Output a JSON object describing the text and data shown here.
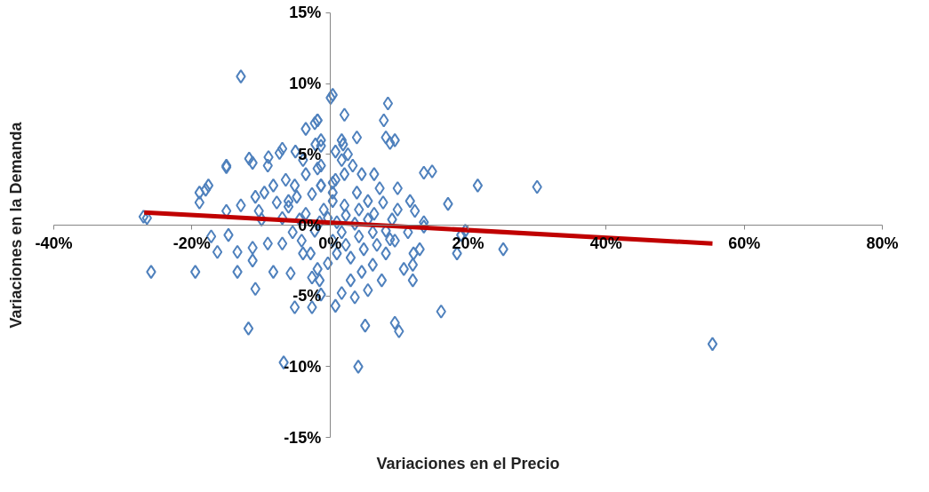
{
  "chart_data": {
    "type": "scatter",
    "xlabel": "Variaciones en el Precio",
    "ylabel": "Variaciones en la Demanda",
    "xlim": [
      -40,
      80
    ],
    "ylim": [
      -15,
      15
    ],
    "xticks": [
      {
        "value": -40,
        "label": "-40%"
      },
      {
        "value": -20,
        "label": "-20%"
      },
      {
        "value": 0,
        "label": "0%"
      },
      {
        "value": 20,
        "label": "20%"
      },
      {
        "value": 40,
        "label": "40%"
      },
      {
        "value": 60,
        "label": "60%"
      },
      {
        "value": 80,
        "label": "80%"
      }
    ],
    "yticks": [
      {
        "value": -15,
        "label": "-15%"
      },
      {
        "value": -10,
        "label": "-10%"
      },
      {
        "value": -5,
        "label": "-5%"
      },
      {
        "value": 0,
        "label": "0%"
      },
      {
        "value": 5,
        "label": "5%"
      },
      {
        "value": 10,
        "label": "10%"
      },
      {
        "value": 15,
        "label": "15%"
      }
    ],
    "grid": false,
    "series": [
      {
        "color": "#4f81bd",
        "marker": "diamond",
        "x": [
          -12.9,
          0.1,
          8.4,
          2.1,
          7.8,
          -2.2,
          -3.5,
          8.1,
          3.9,
          8.7,
          1.9,
          -2.1,
          -5.0,
          -8.9,
          -7.3,
          -11.7,
          -15.0,
          13.6,
          14.8,
          21.4,
          30.0,
          -18.0,
          -18.9,
          17.1,
          -26.5,
          -27.0,
          -25.9,
          -19.5,
          25.1,
          19.0,
          16.1,
          -11.8,
          5.1,
          9.4,
          10.0,
          4.1,
          55.4,
          -6.7,
          12.1,
          13.0,
          12.0,
          18.4,
          12.0,
          13.6,
          19.6,
          -17.2,
          -14.7,
          -16.3,
          -13.4,
          -11.2,
          -13.4,
          -10.8,
          -8.2,
          -5.7,
          -9.0,
          -6.9,
          -3.9,
          -2.6,
          -5.1,
          -2.6,
          0.8,
          -1.3,
          -1.8,
          -11.2,
          -18.9,
          -17.6,
          -15.0,
          -11.2,
          -9.0,
          -6.9,
          -3.9,
          -1.8,
          0.4,
          -15.0,
          -12.9,
          -10.8,
          -9.5,
          -8.2,
          -6.4,
          -5.1,
          -3.5,
          -1.8,
          -1.3,
          2.6,
          -10.3,
          -7.7,
          -6.0,
          -4.8,
          -2.6,
          -1.3,
          0.8,
          0.4,
          -4.4,
          -6.9,
          -9.9,
          -1.8,
          9.4,
          1.7,
          -1.3,
          0.8,
          6.4,
          9.8,
          11.6,
          7.2,
          4.6,
          3.3,
          1.7,
          -1.3,
          -1.3,
          0.4,
          2.1,
          3.9,
          5.5,
          7.7,
          9.8,
          12.3,
          13.6,
          4.2,
          2.1,
          0.4,
          6.4,
          9.0,
          -0.9,
          4.6,
          6.2,
          8.1,
          9.4,
          3.0,
          1.7,
          3.6,
          5.5,
          7.5,
          10.7,
          1.0,
          2.3,
          4.2,
          6.2,
          8.1,
          0.4,
          -0.3,
          -1.5,
          -2.8,
          -4.1,
          -5.4,
          -2.2,
          3.6,
          5.5,
          2.3,
          1.0,
          -0.3,
          -1.5,
          -3.5,
          -6.0,
          1.7,
          3.0,
          4.9,
          6.8,
          8.7,
          11.3
        ],
        "values": [
          10.5,
          9.0,
          8.6,
          7.8,
          7.4,
          7.2,
          6.8,
          6.2,
          6.2,
          5.8,
          5.7,
          5.7,
          5.2,
          4.8,
          5.1,
          4.7,
          4.1,
          3.7,
          3.8,
          2.8,
          2.7,
          2.5,
          1.6,
          1.5,
          0.5,
          0.6,
          -3.3,
          -3.3,
          -1.7,
          -0.7,
          -6.1,
          -7.3,
          -7.1,
          -6.9,
          -7.5,
          -10.0,
          -8.4,
          -9.7,
          -2.0,
          -1.7,
          -2.8,
          -2.0,
          -3.9,
          -0.1,
          -0.4,
          -0.8,
          -0.7,
          -1.9,
          -1.9,
          -2.5,
          -3.3,
          -4.5,
          -3.3,
          -3.4,
          -1.3,
          -1.3,
          -2.0,
          -3.7,
          -5.8,
          -5.8,
          -5.7,
          -4.9,
          -3.1,
          -1.6,
          2.3,
          2.8,
          4.2,
          4.4,
          4.2,
          5.4,
          4.6,
          7.4,
          9.2,
          1.0,
          1.4,
          2.0,
          2.3,
          2.8,
          3.2,
          2.8,
          3.6,
          4.0,
          5.6,
          5.0,
          1.0,
          1.6,
          1.7,
          2.0,
          2.2,
          2.8,
          3.2,
          2.3,
          0.4,
          0.5,
          0.4,
          7.4,
          6.0,
          6.0,
          6.0,
          5.2,
          3.6,
          2.6,
          1.7,
          2.6,
          3.6,
          4.2,
          4.6,
          4.2,
          2.8,
          3.0,
          3.6,
          2.3,
          1.7,
          1.6,
          1.1,
          1.0,
          0.2,
          1.1,
          1.4,
          1.7,
          0.8,
          0.4,
          1.1,
          -3.3,
          -2.8,
          -2.0,
          -1.1,
          -3.9,
          -4.8,
          -5.1,
          -4.6,
          -3.9,
          -3.1,
          -2.0,
          -1.4,
          -0.8,
          -0.5,
          -0.4,
          -1.1,
          -2.7,
          -3.9,
          -2.0,
          -1.1,
          -0.5,
          -0.4,
          0.1,
          0.4,
          0.7,
          0.2,
          0.5,
          0.2,
          0.8,
          1.3,
          -0.5,
          -2.3,
          -1.7,
          -1.4,
          -1.0,
          -0.5
        ]
      },
      {
        "type": "line",
        "color": "#c00000",
        "marker": "none",
        "x": [
          -26.9,
          55.4
        ],
        "values": [
          0.9,
          -1.3
        ]
      }
    ]
  }
}
